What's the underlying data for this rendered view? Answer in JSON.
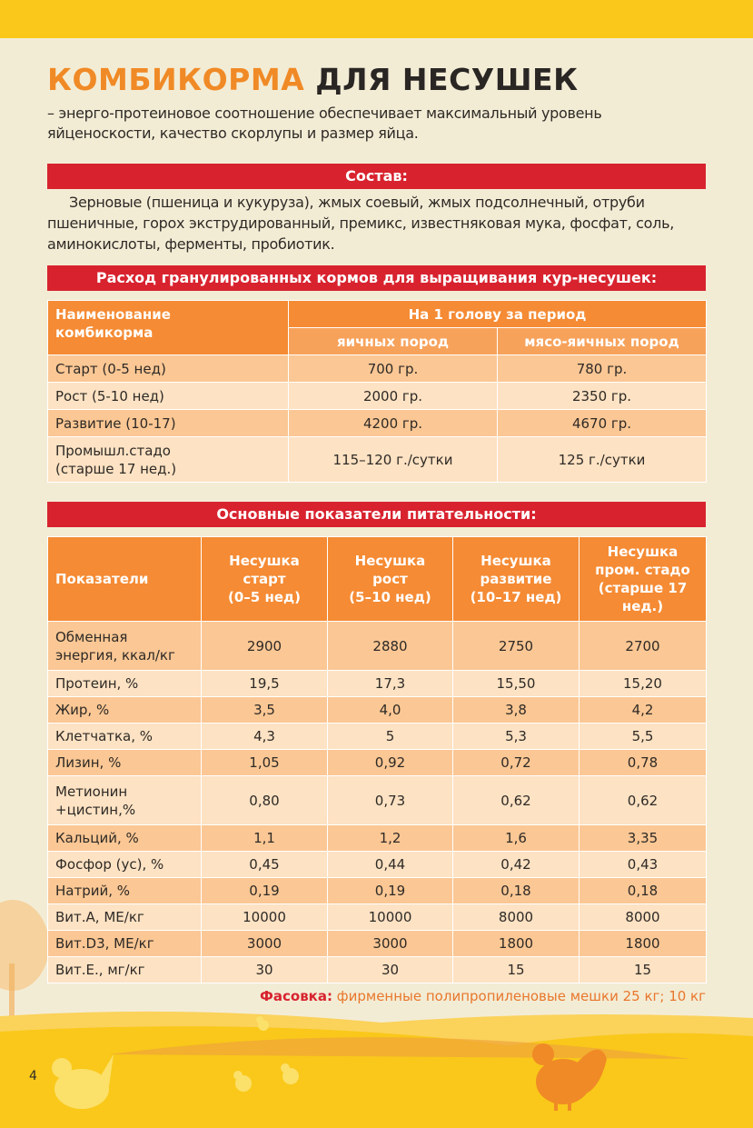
{
  "title": {
    "accent": "КОМБИКОРМА",
    "rest": "ДЛЯ НЕСУШЕК"
  },
  "intro": "– энерго-протеиновое соотношение обеспечивает максимальный уровень яйценоскости, качество скорлупы и размер яйца.",
  "composition": {
    "heading": "Состав:",
    "text": "Зерновые (пшеница и кукуруза), жмых соевый, жмых подсолнечный, отруби пшеничные, горох экструдированный, премикс, известняковая мука, фосфат, соль, аминокислоты, ферменты, пробиотик."
  },
  "feed_table": {
    "heading": "Расход гранулированных кормов для выращивания кур-несушек:",
    "name_column": "Наименование\nкомбикорма",
    "group_column": "На 1 голову за период",
    "subcolumns": [
      "яичных пород",
      "мясо-яичных пород"
    ],
    "rows": [
      [
        "Старт (0-5 нед)",
        "700 гр.",
        "780 гр."
      ],
      [
        "Рост (5-10 нед)",
        "2000 гр.",
        "2350 гр."
      ],
      [
        "Развитие (10-17)",
        "4200 гр.",
        "4670 гр."
      ],
      [
        "Промышл.стадо\n(старше 17 нед.)",
        "115–120 г./сутки",
        "125 г./сутки"
      ]
    ]
  },
  "nutrition_table": {
    "heading": "Основные показатели питательности:",
    "columns": [
      "Показатели",
      "Несушка\nстарт\n(0–5 нед)",
      "Несушка\nрост\n(5–10 нед)",
      "Несушка\nразвитие\n(10–17 нед)",
      "Несушка\nпром. стадо\n(старше 17\nнед.)"
    ],
    "rows": [
      [
        "Обменная\nэнергия, ккал/кг",
        "2900",
        "2880",
        "2750",
        "2700"
      ],
      [
        "Протеин, %",
        "19,5",
        "17,3",
        "15,50",
        "15,20"
      ],
      [
        "Жир, %",
        "3,5",
        "4,0",
        "3,8",
        "4,2"
      ],
      [
        "Клетчатка, %",
        "4,3",
        "5",
        "5,3",
        "5,5"
      ],
      [
        "Лизин, %",
        "1,05",
        "0,92",
        "0,72",
        "0,78"
      ],
      [
        "Метионин\n+цистин,%",
        "0,80",
        "0,73",
        "0,62",
        "0,62"
      ],
      [
        "Кальций, %",
        "1,1",
        "1,2",
        "1,6",
        "3,35"
      ],
      [
        "Фосфор (ус), %",
        "0,45",
        "0,44",
        "0,42",
        "0,43"
      ],
      [
        "Натрий, %",
        "0,19",
        "0,19",
        "0,18",
        "0,18"
      ],
      [
        "Вит.А, МЕ/кг",
        "10000",
        "10000",
        "8000",
        "8000"
      ],
      [
        "Вит.D3, МЕ/кг",
        "3000",
        "3000",
        "1800",
        "1800"
      ],
      [
        "Вит.Е., мг/кг",
        "30",
        "30",
        "15",
        "15"
      ]
    ]
  },
  "packaging": {
    "label": "Фасовка:",
    "text": "фирменные полипропиленовые мешки 25 кг; 10 кг"
  },
  "page_number": "4"
}
